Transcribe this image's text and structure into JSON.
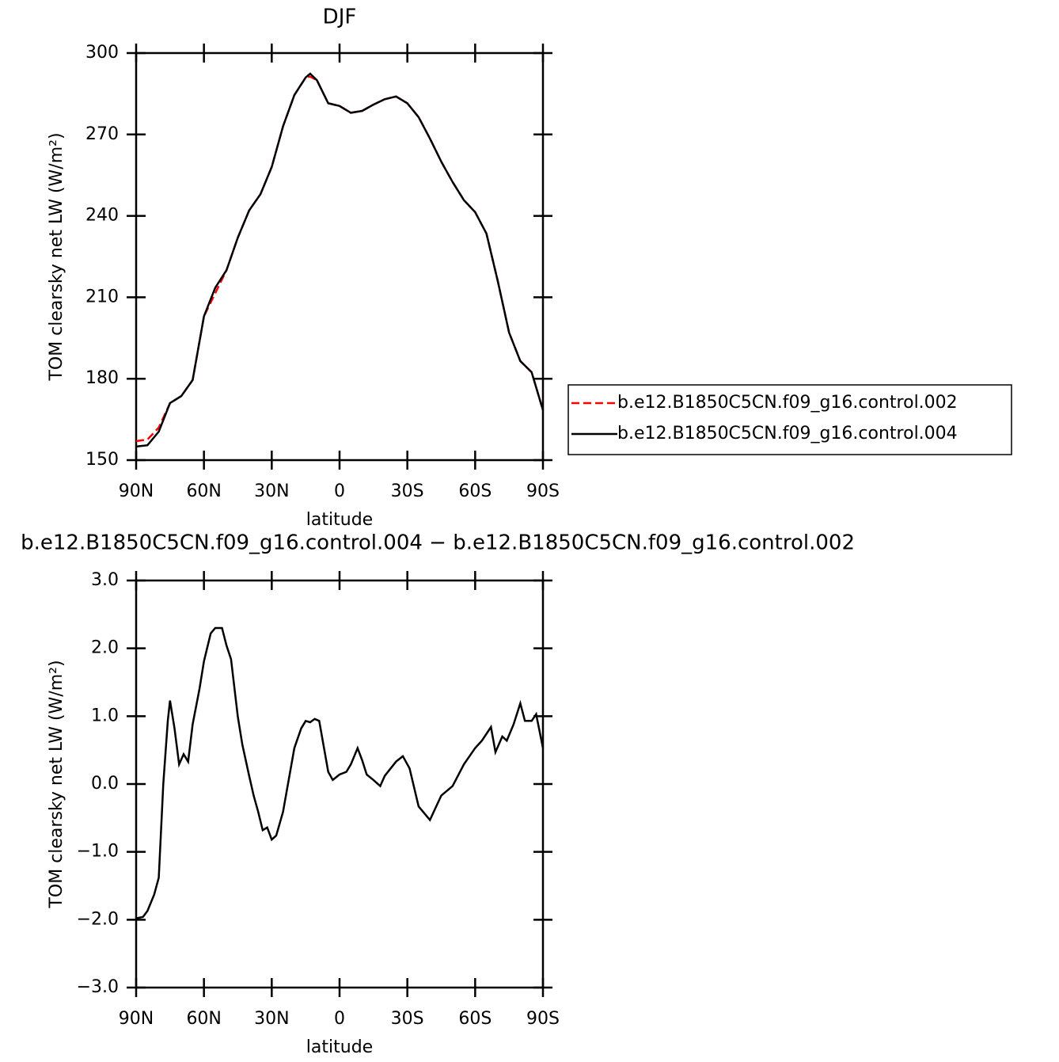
{
  "chart_data": [
    {
      "type": "line",
      "title": "DJF",
      "xlabel": "latitude",
      "ylabel": "TOM clearsky net LW (W/m²)",
      "xlim": [
        90,
        -90
      ],
      "ylim": [
        150,
        300
      ],
      "xticks": [
        {
          "value": 90,
          "label": "90N"
        },
        {
          "value": 60,
          "label": "60N"
        },
        {
          "value": 30,
          "label": "30N"
        },
        0,
        {
          "value": -30,
          "label": "30S"
        },
        {
          "value": -60,
          "label": "60S"
        },
        {
          "value": -90,
          "label": "90S"
        }
      ],
      "yticks": [
        150,
        180,
        210,
        240,
        270,
        300
      ],
      "x": [
        90,
        85,
        80,
        75,
        70,
        65,
        60,
        55,
        50,
        45,
        40,
        35,
        30,
        25,
        20,
        15,
        13,
        10,
        5,
        0,
        -5,
        -10,
        -15,
        -20,
        -25,
        -30,
        -35,
        -40,
        -45,
        -50,
        -55,
        -60,
        -65,
        -70,
        -75,
        -80,
        -85,
        -90
      ],
      "legend": "outside-right",
      "series": [
        {
          "name": "b.e12.B1850C5CN.f09_g16.control.002",
          "color": "#ff0000",
          "dash": true,
          "values": [
            157,
            157.6,
            162,
            171,
            173.6,
            179.5,
            203,
            211.5,
            220,
            232,
            242,
            248,
            258,
            273,
            284.5,
            291,
            291.3,
            290,
            281.5,
            280.5,
            278,
            278.7,
            281,
            283,
            284,
            281.5,
            276.4,
            268.5,
            260,
            252.5,
            245.8,
            241.4,
            233.5,
            216,
            197,
            186.5,
            182.4,
            168.4
          ]
        },
        {
          "name": "b.e12.B1850C5CN.f09_g16.control.004",
          "color": "#000000",
          "dash": false,
          "values": [
            155,
            155.5,
            160.5,
            171,
            173.6,
            179.5,
            203,
            213.5,
            220,
            232,
            242,
            248,
            258,
            273,
            284.5,
            291,
            292.4,
            290,
            281.5,
            280.5,
            278,
            278.7,
            281,
            283,
            284,
            281.5,
            276.4,
            268.5,
            260,
            252.5,
            245.8,
            241.4,
            233.5,
            216,
            197,
            186.5,
            182.4,
            168.4
          ]
        }
      ]
    },
    {
      "type": "line",
      "title": "b.e12.B1850C5CN.f09_g16.control.004 − b.e12.B1850C5CN.f09_g16.control.002",
      "xlabel": "latitude",
      "ylabel": "TOM clearsky net LW (W/m²)",
      "xlim": [
        90,
        -90
      ],
      "ylim": [
        -3,
        3
      ],
      "xticks": [
        {
          "value": 90,
          "label": "90N"
        },
        {
          "value": 60,
          "label": "60N"
        },
        {
          "value": 30,
          "label": "30N"
        },
        0,
        {
          "value": -30,
          "label": "30S"
        },
        {
          "value": -60,
          "label": "60S"
        },
        {
          "value": -90,
          "label": "90S"
        }
      ],
      "yticks": [
        {
          "value": -3,
          "label": "−3.0"
        },
        {
          "value": -2,
          "label": "−2.0"
        },
        {
          "value": -1,
          "label": "−1.0"
        },
        {
          "value": 0,
          "label": "0.0"
        },
        {
          "value": 1,
          "label": "1.0"
        },
        {
          "value": 2,
          "label": "2.0"
        },
        {
          "value": 3,
          "label": "3.0"
        }
      ],
      "x": [
        90,
        87,
        85,
        82,
        80,
        78,
        76,
        75,
        73,
        71,
        69,
        67,
        65,
        62,
        60,
        57,
        55,
        52,
        50,
        48,
        45,
        43,
        40,
        38,
        36,
        34,
        32,
        30,
        28,
        25,
        20,
        17,
        15,
        13,
        11,
        9,
        5,
        3,
        0,
        -3,
        -5,
        -8,
        -10,
        -12,
        -15,
        -18,
        -20,
        -25,
        -28,
        -31,
        -35,
        -40,
        -45,
        -50,
        -55,
        -60,
        -63,
        -67,
        -69,
        -72,
        -74,
        -77,
        -80,
        -82,
        -85,
        -87,
        -90
      ],
      "series": [
        {
          "color": "#000000",
          "dash": false,
          "values": [
            -1.98,
            -1.96,
            -1.87,
            -1.63,
            -1.38,
            0.0,
            0.93,
            1.23,
            0.82,
            0.29,
            0.44,
            0.33,
            0.88,
            1.4,
            1.81,
            2.22,
            2.3,
            2.3,
            2.04,
            1.84,
            0.99,
            0.58,
            0.12,
            -0.17,
            -0.41,
            -0.68,
            -0.64,
            -0.82,
            -0.76,
            -0.41,
            0.53,
            0.82,
            0.93,
            0.91,
            0.96,
            0.93,
            0.18,
            0.06,
            0.14,
            0.18,
            0.29,
            0.53,
            0.35,
            0.14,
            0.06,
            -0.03,
            0.12,
            0.33,
            0.41,
            0.23,
            -0.33,
            -0.53,
            -0.17,
            -0.03,
            0.29,
            0.53,
            0.64,
            0.84,
            0.47,
            0.7,
            0.64,
            0.88,
            1.19,
            0.93,
            0.93,
            1.03,
            0.53
          ]
        }
      ]
    }
  ]
}
